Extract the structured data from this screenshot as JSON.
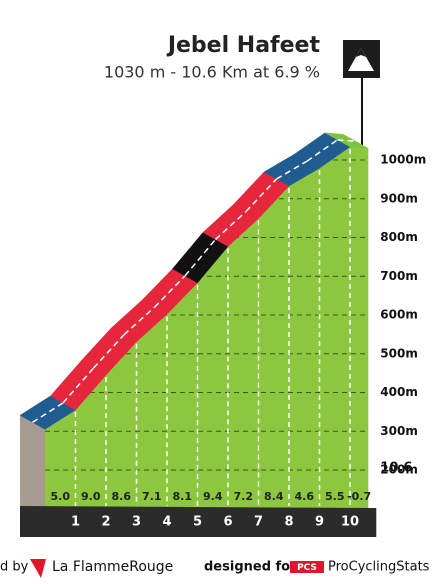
{
  "chart_data": {
    "type": "climb-profile",
    "title": "Jebel Hafeet",
    "subtitle": "1030 m - 10.6 Km at 6.9 %",
    "x": [
      0,
      1,
      2,
      3,
      4,
      5,
      6,
      7,
      8,
      9,
      10,
      10.6
    ],
    "values": [
      305,
      355,
      445,
      531,
      602,
      683,
      777,
      849,
      933,
      979,
      1034,
      1030
    ],
    "gradients": [
      5.0,
      9.0,
      8.6,
      7.1,
      8.1,
      9.4,
      7.2,
      8.4,
      4.6,
      5.5,
      -0.7
    ],
    "gradient_labels": [
      "5.0",
      "9.0",
      "8.6",
      "7.1",
      "8.1",
      "9.4",
      "7.2",
      "8.4",
      "4.6",
      "5.5",
      "-0.7"
    ],
    "segment_colors": [
      "#1f5c8f",
      "#e5263b",
      "#e5263b",
      "#e5263b",
      "#e5263b",
      "#111111",
      "#e5263b",
      "#e5263b",
      "#1f5c8f",
      "#1f5c8f",
      "#7dc242"
    ],
    "ground_color": "#8dc63f",
    "ylim": [
      200,
      1000
    ],
    "yticks": [
      {
        "value": 200,
        "label": "200m"
      },
      {
        "value": 300,
        "label": "300m"
      },
      {
        "value": 400,
        "label": "400m"
      },
      {
        "value": 500,
        "label": "500m"
      },
      {
        "value": 600,
        "label": "600m"
      },
      {
        "value": 700,
        "label": "700m"
      },
      {
        "value": 800,
        "label": "800m"
      },
      {
        "value": 900,
        "label": "900m"
      },
      {
        "value": 1000,
        "label": "1000m"
      }
    ],
    "grid": true
  },
  "footer": {
    "left": "d by",
    "brand": "La FlammeRouge",
    "designed": "designed for",
    "pcs": "PCS",
    "site": "ProCyclingStats"
  }
}
